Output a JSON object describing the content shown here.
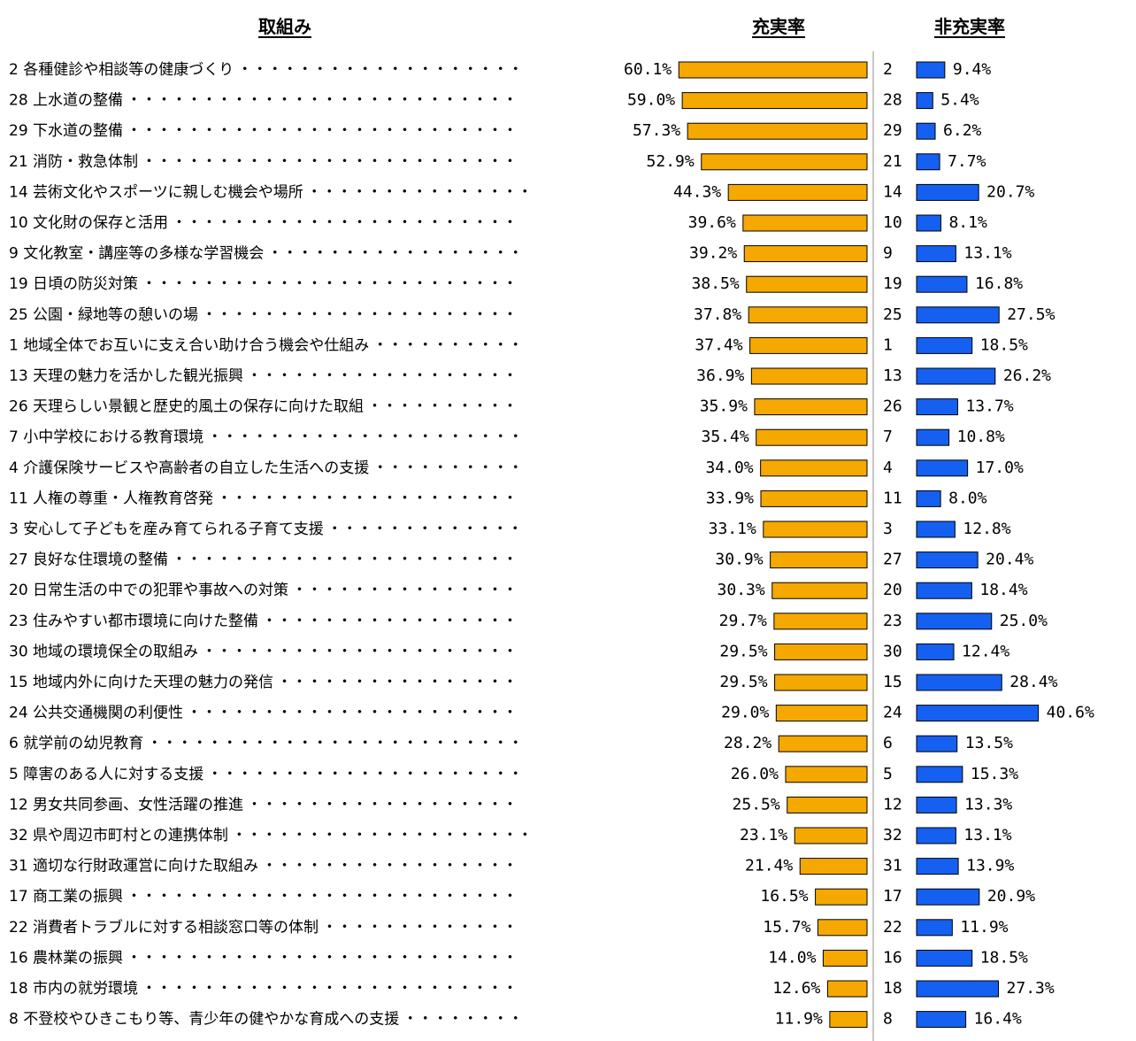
{
  "chart_data": {
    "type": "bar",
    "headers": {
      "item": "取組み",
      "satisfied": "充実率",
      "unsatisfied": "非充実率"
    },
    "dots": "・・・・・・・・・・・・・・・・・・・・・・・・・・・・・",
    "series_colors": {
      "satisfied": "#F5A800",
      "unsatisfied": "#1560F0",
      "divider": "#C8C8C8"
    },
    "items": [
      {
        "id": "2",
        "name": "各種健診や相談等の健康づくり",
        "satisfied": 60.1,
        "satisfied_label": "60.1%",
        "unsatisfied": 9.4,
        "unsatisfied_label": "9.4%"
      },
      {
        "id": "28",
        "name": "上水道の整備",
        "satisfied": 59.0,
        "satisfied_label": "59.0%",
        "unsatisfied": 5.4,
        "unsatisfied_label": "5.4%"
      },
      {
        "id": "29",
        "name": "下水道の整備",
        "satisfied": 57.3,
        "satisfied_label": "57.3%",
        "unsatisfied": 6.2,
        "unsatisfied_label": "6.2%"
      },
      {
        "id": "21",
        "name": "消防・救急体制",
        "satisfied": 52.9,
        "satisfied_label": "52.9%",
        "unsatisfied": 7.7,
        "unsatisfied_label": "7.7%"
      },
      {
        "id": "14",
        "name": "芸術文化やスポーツに親しむ機会や場所",
        "satisfied": 44.3,
        "satisfied_label": "44.3%",
        "unsatisfied": 20.7,
        "unsatisfied_label": "20.7%"
      },
      {
        "id": "10",
        "name": "文化財の保存と活用",
        "satisfied": 39.6,
        "satisfied_label": "39.6%",
        "unsatisfied": 8.1,
        "unsatisfied_label": "8.1%"
      },
      {
        "id": "9",
        "name": "文化教室・講座等の多様な学習機会",
        "satisfied": 39.2,
        "satisfied_label": "39.2%",
        "unsatisfied": 13.1,
        "unsatisfied_label": "13.1%"
      },
      {
        "id": "19",
        "name": "日頃の防災対策",
        "satisfied": 38.5,
        "satisfied_label": "38.5%",
        "unsatisfied": 16.8,
        "unsatisfied_label": "16.8%"
      },
      {
        "id": "25",
        "name": "公園・緑地等の憩いの場",
        "satisfied": 37.8,
        "satisfied_label": "37.8%",
        "unsatisfied": 27.5,
        "unsatisfied_label": "27.5%"
      },
      {
        "id": "1",
        "name": "地域全体でお互いに支え合い助け合う機会や仕組み",
        "satisfied": 37.4,
        "satisfied_label": "37.4%",
        "unsatisfied": 18.5,
        "unsatisfied_label": "18.5%"
      },
      {
        "id": "13",
        "name": "天理の魅力を活かした観光振興",
        "satisfied": 36.9,
        "satisfied_label": "36.9%",
        "unsatisfied": 26.2,
        "unsatisfied_label": "26.2%"
      },
      {
        "id": "26",
        "name": "天理らしい景観と歴史的風土の保存に向けた取組",
        "satisfied": 35.9,
        "satisfied_label": "35.9%",
        "unsatisfied": 13.7,
        "unsatisfied_label": "13.7%"
      },
      {
        "id": "7",
        "name": "小中学校における教育環境",
        "satisfied": 35.4,
        "satisfied_label": "35.4%",
        "unsatisfied": 10.8,
        "unsatisfied_label": "10.8%"
      },
      {
        "id": "4",
        "name": "介護保険サービスや高齢者の自立した生活への支援",
        "satisfied": 34.0,
        "satisfied_label": "34.0%",
        "unsatisfied": 17.0,
        "unsatisfied_label": "17.0%"
      },
      {
        "id": "11",
        "name": "人権の尊重・人権教育啓発",
        "satisfied": 33.9,
        "satisfied_label": "33.9%",
        "unsatisfied": 8.0,
        "unsatisfied_label": "8.0%"
      },
      {
        "id": "3",
        "name": "安心して子どもを産み育てられる子育て支援",
        "satisfied": 33.1,
        "satisfied_label": "33.1%",
        "unsatisfied": 12.8,
        "unsatisfied_label": "12.8%"
      },
      {
        "id": "27",
        "name": "良好な住環境の整備",
        "satisfied": 30.9,
        "satisfied_label": "30.9%",
        "unsatisfied": 20.4,
        "unsatisfied_label": "20.4%"
      },
      {
        "id": "20",
        "name": "日常生活の中での犯罪や事故への対策",
        "satisfied": 30.3,
        "satisfied_label": "30.3%",
        "unsatisfied": 18.4,
        "unsatisfied_label": "18.4%"
      },
      {
        "id": "23",
        "name": "住みやすい都市環境に向けた整備",
        "satisfied": 29.7,
        "satisfied_label": "29.7%",
        "unsatisfied": 25.0,
        "unsatisfied_label": "25.0%"
      },
      {
        "id": "30",
        "name": "地域の環境保全の取組み",
        "satisfied": 29.5,
        "satisfied_label": "29.5%",
        "unsatisfied": 12.4,
        "unsatisfied_label": "12.4%"
      },
      {
        "id": "15",
        "name": "地域内外に向けた天理の魅力の発信",
        "satisfied": 29.5,
        "satisfied_label": "29.5%",
        "unsatisfied": 28.4,
        "unsatisfied_label": "28.4%"
      },
      {
        "id": "24",
        "name": "公共交通機関の利便性",
        "satisfied": 29.0,
        "satisfied_label": "29.0%",
        "unsatisfied": 40.6,
        "unsatisfied_label": "40.6%"
      },
      {
        "id": "6",
        "name": "就学前の幼児教育",
        "satisfied": 28.2,
        "satisfied_label": "28.2%",
        "unsatisfied": 13.5,
        "unsatisfied_label": "13.5%"
      },
      {
        "id": "5",
        "name": "障害のある人に対する支援",
        "satisfied": 26.0,
        "satisfied_label": "26.0%",
        "unsatisfied": 15.3,
        "unsatisfied_label": "15.3%"
      },
      {
        "id": "12",
        "name": "男女共同参画、女性活躍の推進",
        "satisfied": 25.5,
        "satisfied_label": "25.5%",
        "unsatisfied": 13.3,
        "unsatisfied_label": "13.3%"
      },
      {
        "id": "32",
        "name": "県や周辺市町村との連携体制",
        "satisfied": 23.1,
        "satisfied_label": "23.1%",
        "unsatisfied": 13.1,
        "unsatisfied_label": "13.1%"
      },
      {
        "id": "31",
        "name": "適切な行財政運営に向けた取組み",
        "satisfied": 21.4,
        "satisfied_label": "21.4%",
        "unsatisfied": 13.9,
        "unsatisfied_label": "13.9%"
      },
      {
        "id": "17",
        "name": "商工業の振興",
        "satisfied": 16.5,
        "satisfied_label": "16.5%",
        "unsatisfied": 20.9,
        "unsatisfied_label": "20.9%"
      },
      {
        "id": "22",
        "name": "消費者トラブルに対する相談窓口等の体制",
        "satisfied": 15.7,
        "satisfied_label": "15.7%",
        "unsatisfied": 11.9,
        "unsatisfied_label": "11.9%"
      },
      {
        "id": "16",
        "name": "農林業の振興",
        "satisfied": 14.0,
        "satisfied_label": "14.0%",
        "unsatisfied": 18.5,
        "unsatisfied_label": "18.5%"
      },
      {
        "id": "18",
        "name": "市内の就労環境",
        "satisfied": 12.6,
        "satisfied_label": "12.6%",
        "unsatisfied": 27.3,
        "unsatisfied_label": "27.3%"
      },
      {
        "id": "8",
        "name": "不登校やひきこもり等、青少年の健やかな育成への支援",
        "satisfied": 11.9,
        "satisfied_label": "11.9%",
        "unsatisfied": 16.4,
        "unsatisfied_label": "16.4%"
      }
    ]
  }
}
